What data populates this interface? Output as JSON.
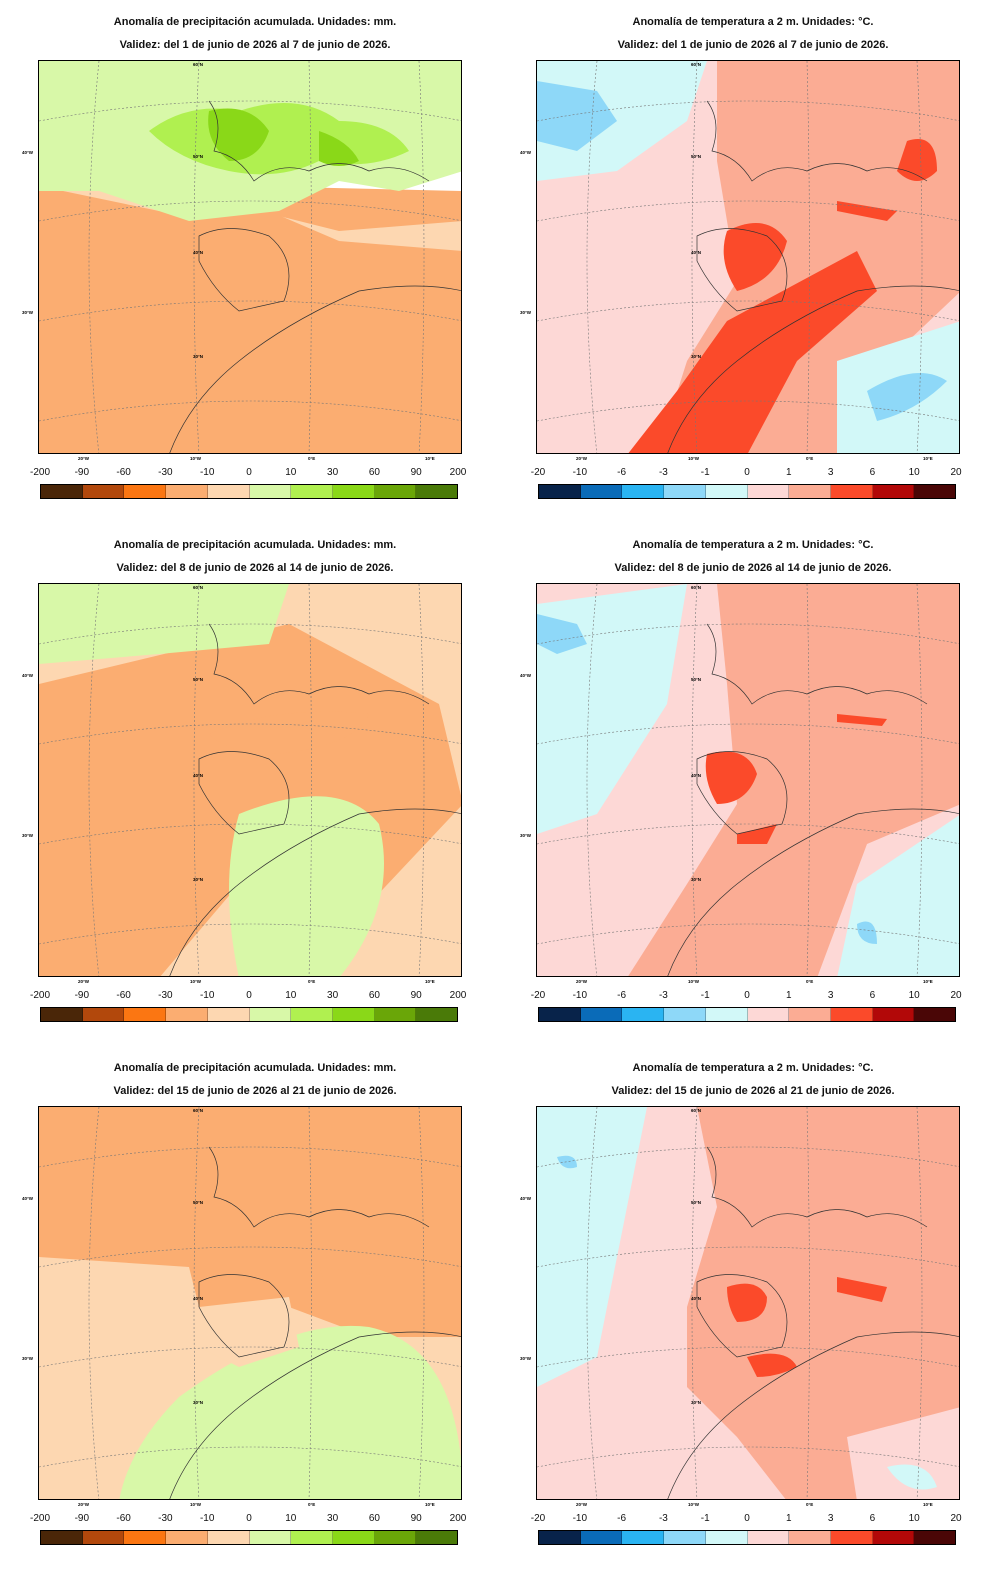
{
  "panels": [
    {
      "id": "precip-week1",
      "kind": "precip",
      "title": "Anomalía de precipitación acumulada. Unidades: mm.",
      "validity": "Validez: del 1 de junio de 2026 al 7 de junio de 2026."
    },
    {
      "id": "temp-week1",
      "kind": "temp",
      "title": "Anomalía de temperatura a 2 m. Unidades: °C.",
      "validity": "Validez: del 1 de junio de 2026 al 7 de junio de 2026."
    },
    {
      "id": "precip-week2",
      "kind": "precip",
      "title": "Anomalía de precipitación acumulada. Unidades: mm.",
      "validity": "Validez: del 8 de junio de 2026 al 14 de junio de 2026."
    },
    {
      "id": "temp-week2",
      "kind": "temp",
      "title": "Anomalía de temperatura a 2 m. Unidades: °C.",
      "validity": "Validez: del 8 de junio de 2026 al 14 de junio de 2026."
    },
    {
      "id": "precip-week3",
      "kind": "precip",
      "title": "Anomalía de precipitación acumulada. Unidades: mm.",
      "validity": "Validez: del 15 de junio de 2026 al 21 de junio de 2026."
    },
    {
      "id": "temp-week3",
      "kind": "temp",
      "title": "Anomalía de temperatura a 2 m. Unidades: °C.",
      "validity": "Validez: del 15 de junio de 2026 al 21 de junio de 2026."
    }
  ],
  "legends": {
    "precip": {
      "ticks": [
        "-200",
        "-90",
        "-60",
        "-30",
        "-10",
        "0",
        "10",
        "30",
        "60",
        "90",
        "200"
      ],
      "colors": [
        "#4a2608",
        "#b2480c",
        "#fb7612",
        "#fbad71",
        "#fdd7b1",
        "#d8f8a8",
        "#b0f050",
        "#8ad818",
        "#6aa608",
        "#4a7a08"
      ]
    },
    "temp": {
      "ticks": [
        "-20",
        "-10",
        "-6",
        "-3",
        "-1",
        "0",
        "1",
        "3",
        "6",
        "10",
        "20"
      ],
      "colors": [
        "#08234a",
        "#0a6bb8",
        "#2ab4f2",
        "#8ed8f8",
        "#d2f8f8",
        "#fdd8d6",
        "#fbac94",
        "#fb4a2a",
        "#b20808",
        "#4a0606"
      ]
    }
  },
  "map_labels": {
    "lat_left": [
      "40°W",
      "30°W",
      "30°W"
    ],
    "lat_inner": [
      "60°N",
      "50°N",
      "40°N",
      "30°N"
    ],
    "lon_bottom": [
      "20°W",
      "10°W",
      "0°E",
      "10°E"
    ]
  }
}
